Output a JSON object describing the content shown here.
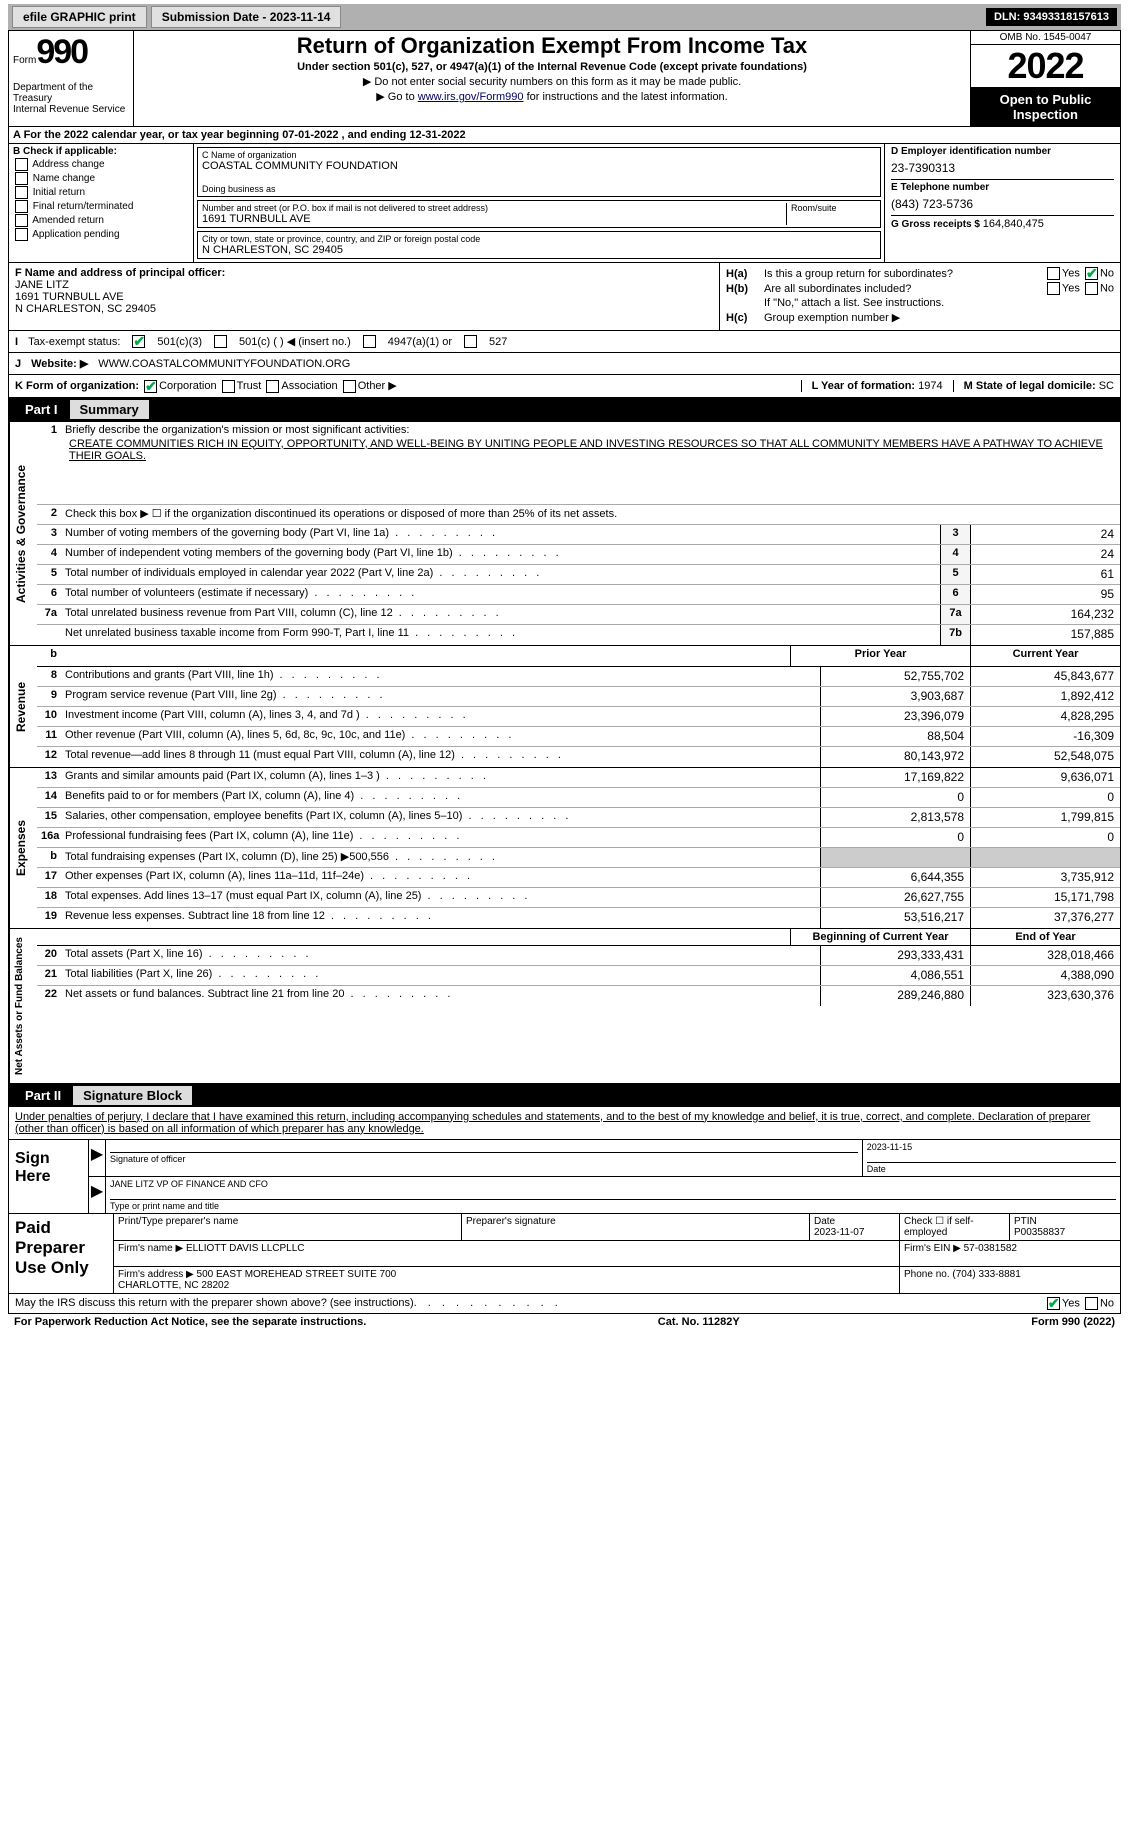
{
  "topbar": {
    "efile": "efile GRAPHIC print",
    "sub_label": "Submission Date - 2023-11-14",
    "dln": "DLN: 93493318157613"
  },
  "header": {
    "form": "Form",
    "num": "990",
    "dept": "Department of the Treasury\nInternal Revenue Service",
    "title": "Return of Organization Exempt From Income Tax",
    "sub": "Under section 501(c), 527, or 4947(a)(1) of the Internal Revenue Code (except private foundations)",
    "note1": "▶ Do not enter social security numbers on this form as it may be made public.",
    "note2_pre": "▶ Go to ",
    "note2_link": "www.irs.gov/Form990",
    "note2_post": " for instructions and the latest information.",
    "omb": "OMB No. 1545-0047",
    "year": "2022",
    "open": "Open to Public Inspection"
  },
  "row_a": "A For the 2022 calendar year, or tax year beginning 07-01-2022   , and ending 12-31-2022",
  "b": {
    "label": "B Check if applicable:",
    "items": [
      "Address change",
      "Name change",
      "Initial return",
      "Final return/terminated",
      "Amended return",
      "Application pending"
    ]
  },
  "c": {
    "name_lbl": "C Name of organization",
    "name": "COASTAL COMMUNITY FOUNDATION",
    "dba_lbl": "Doing business as",
    "dba": "",
    "addr_lbl": "Number and street (or P.O. box if mail is not delivered to street address)",
    "room_lbl": "Room/suite",
    "addr": "1691 TURNBULL AVE",
    "city_lbl": "City or town, state or province, country, and ZIP or foreign postal code",
    "city": "N CHARLESTON, SC  29405"
  },
  "d": {
    "ein_lbl": "D Employer identification number",
    "ein": "23-7390313",
    "tel_lbl": "E Telephone number",
    "tel": "(843) 723-5736",
    "gross_lbl": "G Gross receipts $ ",
    "gross": "164,840,475"
  },
  "f": {
    "lbl": "F Name and address of principal officer:",
    "name": "JANE LITZ",
    "addr": "1691 TURNBULL AVE\nN CHARLESTON, SC  29405"
  },
  "h": {
    "a": "Is this a group return for subordinates?",
    "b": "Are all subordinates included?",
    "bnote": "If \"No,\" attach a list. See instructions.",
    "c": "Group exemption number ▶",
    "yes": "Yes",
    "no": "No",
    "ha_l": "H(a)",
    "hb_l": "H(b)",
    "hc_l": "H(c)"
  },
  "i": {
    "lbl": "Tax-exempt status:",
    "o1": "501(c)(3)",
    "o2": "501(c) (  ) ◀ (insert no.)",
    "o3": "4947(a)(1) or",
    "o4": "527"
  },
  "j": {
    "lbl": "Website: ▶",
    "val": "WWW.COASTALCOMMUNITYFOUNDATION.ORG"
  },
  "k": {
    "lbl": "K Form of organization:",
    "o1": "Corporation",
    "o2": "Trust",
    "o3": "Association",
    "o4": "Other ▶",
    "l_lbl": "L Year of formation: ",
    "l_val": "1974",
    "m_lbl": "M State of legal domicile: ",
    "m_val": "SC"
  },
  "part1": {
    "num": "Part I",
    "title": "Summary"
  },
  "s1": {
    "lbl": "Briefly describe the organization's mission or most significant activities:",
    "mission": "CREATE COMMUNITIES RICH IN EQUITY, OPPORTUNITY, AND WELL-BEING BY UNITING PEOPLE AND INVESTING RESOURCES SO THAT ALL COMMUNITY MEMBERS HAVE A PATHWAY TO ACHIEVE THEIR GOALS.",
    "l2": "Check this box ▶ ☐ if the organization discontinued its operations or disposed of more than 25% of its net assets.",
    "rows_ag": [
      {
        "n": "3",
        "t": "Number of voting members of the governing body (Part VI, line 1a)",
        "b": "3",
        "v": "24"
      },
      {
        "n": "4",
        "t": "Number of independent voting members of the governing body (Part VI, line 1b)",
        "b": "4",
        "v": "24"
      },
      {
        "n": "5",
        "t": "Total number of individuals employed in calendar year 2022 (Part V, line 2a)",
        "b": "5",
        "v": "61"
      },
      {
        "n": "6",
        "t": "Total number of volunteers (estimate if necessary)",
        "b": "6",
        "v": "95"
      },
      {
        "n": "7a",
        "t": "Total unrelated business revenue from Part VIII, column (C), line 12",
        "b": "7a",
        "v": "164,232"
      },
      {
        "n": "",
        "t": "Net unrelated business taxable income from Form 990-T, Part I, line 11",
        "b": "7b",
        "v": "157,885"
      }
    ],
    "hdr_prior": "Prior Year",
    "hdr_curr": "Current Year",
    "rows_rev": [
      {
        "n": "8",
        "t": "Contributions and grants (Part VIII, line 1h)",
        "p": "52,755,702",
        "c": "45,843,677"
      },
      {
        "n": "9",
        "t": "Program service revenue (Part VIII, line 2g)",
        "p": "3,903,687",
        "c": "1,892,412"
      },
      {
        "n": "10",
        "t": "Investment income (Part VIII, column (A), lines 3, 4, and 7d )",
        "p": "23,396,079",
        "c": "4,828,295"
      },
      {
        "n": "11",
        "t": "Other revenue (Part VIII, column (A), lines 5, 6d, 8c, 9c, 10c, and 11e)",
        "p": "88,504",
        "c": "-16,309"
      },
      {
        "n": "12",
        "t": "Total revenue—add lines 8 through 11 (must equal Part VIII, column (A), line 12)",
        "p": "80,143,972",
        "c": "52,548,075"
      }
    ],
    "rows_exp": [
      {
        "n": "13",
        "t": "Grants and similar amounts paid (Part IX, column (A), lines 1–3 )",
        "p": "17,169,822",
        "c": "9,636,071"
      },
      {
        "n": "14",
        "t": "Benefits paid to or for members (Part IX, column (A), line 4)",
        "p": "0",
        "c": "0"
      },
      {
        "n": "15",
        "t": "Salaries, other compensation, employee benefits (Part IX, column (A), lines 5–10)",
        "p": "2,813,578",
        "c": "1,799,815"
      },
      {
        "n": "16a",
        "t": "Professional fundraising fees (Part IX, column (A), line 11e)",
        "p": "0",
        "c": "0"
      },
      {
        "n": "b",
        "t": "Total fundraising expenses (Part IX, column (D), line 25) ▶500,556",
        "p": "",
        "c": "",
        "shade": true
      },
      {
        "n": "17",
        "t": "Other expenses (Part IX, column (A), lines 11a–11d, 11f–24e)",
        "p": "6,644,355",
        "c": "3,735,912"
      },
      {
        "n": "18",
        "t": "Total expenses. Add lines 13–17 (must equal Part IX, column (A), line 25)",
        "p": "26,627,755",
        "c": "15,171,798"
      },
      {
        "n": "19",
        "t": "Revenue less expenses. Subtract line 18 from line 12",
        "p": "53,516,217",
        "c": "37,376,277"
      }
    ],
    "hdr_beg": "Beginning of Current Year",
    "hdr_end": "End of Year",
    "rows_net": [
      {
        "n": "20",
        "t": "Total assets (Part X, line 16)",
        "p": "293,333,431",
        "c": "328,018,466"
      },
      {
        "n": "21",
        "t": "Total liabilities (Part X, line 26)",
        "p": "4,086,551",
        "c": "4,388,090"
      },
      {
        "n": "22",
        "t": "Net assets or fund balances. Subtract line 21 from line 20",
        "p": "289,246,880",
        "c": "323,630,376"
      }
    ],
    "vtab_ag": "Activities & Governance",
    "vtab_rev": "Revenue",
    "vtab_exp": "Expenses",
    "vtab_net": "Net Assets or Fund Balances"
  },
  "part2": {
    "num": "Part II",
    "title": "Signature Block"
  },
  "sig": {
    "decl": "Under penalties of perjury, I declare that I have examined this return, including accompanying schedules and statements, and to the best of my knowledge and belief, it is true, correct, and complete. Declaration of preparer (other than officer) is based on all information of which preparer has any knowledge.",
    "sign_here": "Sign Here",
    "sig_of": "Signature of officer",
    "date": "Date",
    "date_v": "2023-11-15",
    "name": "JANE LITZ VP OF FINANCE AND CFO",
    "name_lbl": "Type or print name and title"
  },
  "prep": {
    "title": "Paid Preparer Use Only",
    "h1": "Print/Type preparer's name",
    "h2": "Preparer's signature",
    "h3": "Date",
    "h3v": "2023-11-07",
    "h4": "Check ☐ if self-employed",
    "h5": "PTIN",
    "h5v": "P00358837",
    "firm_lbl": "Firm's name   ▶",
    "firm": "ELLIOTT DAVIS LLCPLLC",
    "ein_lbl": "Firm's EIN ▶",
    "ein": "57-0381582",
    "addr_lbl": "Firm's address ▶",
    "addr": "500 EAST MOREHEAD STREET SUITE 700\nCHARLOTTE, NC  28202",
    "ph_lbl": "Phone no.",
    "ph": "(704) 333-8881"
  },
  "foot": {
    "q": "May the IRS discuss this return with the preparer shown above? (see instructions)",
    "yes": "Yes",
    "no": "No"
  },
  "btm": {
    "l": "For Paperwork Reduction Act Notice, see the separate instructions.",
    "m": "Cat. No. 11282Y",
    "r": "Form 990 (2022)"
  }
}
